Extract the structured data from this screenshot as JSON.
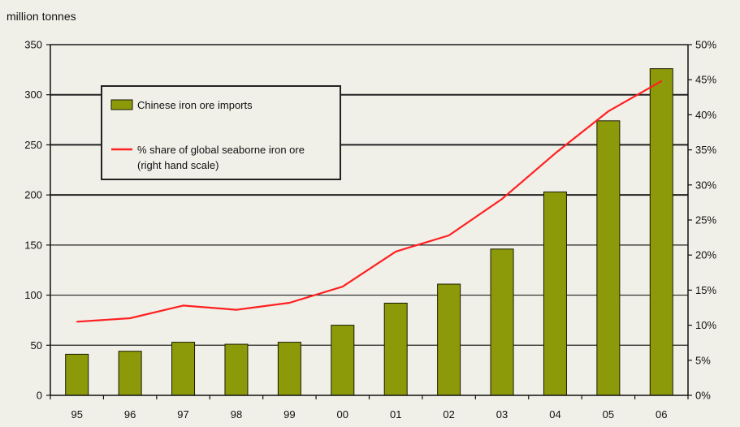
{
  "chart_data": {
    "type": "bar",
    "unit_label": "million tonnes",
    "categories": [
      "95",
      "96",
      "97",
      "98",
      "99",
      "00",
      "01",
      "02",
      "03",
      "04",
      "05",
      "06"
    ],
    "series": [
      {
        "name": "Chinese iron ore imports",
        "type": "bar",
        "axis": "left",
        "color": "#8c9a0a",
        "values": [
          41,
          44,
          53,
          51,
          53,
          70,
          92,
          111,
          146,
          203,
          274,
          326
        ]
      },
      {
        "name": "% share of global seaborne iron ore",
        "name_note": "(right hand scale)",
        "type": "line",
        "axis": "right",
        "color": "#ff2020",
        "values": [
          10.5,
          11.0,
          12.8,
          12.2,
          13.2,
          15.5,
          20.5,
          22.8,
          28.0,
          34.5,
          40.5,
          44.8
        ]
      }
    ],
    "y_left": {
      "min": 0,
      "max": 350,
      "ticks": [
        0,
        50,
        100,
        150,
        200,
        250,
        300,
        350
      ]
    },
    "y_right": {
      "min": 0,
      "max": 50,
      "ticks": [
        0,
        5,
        10,
        15,
        20,
        25,
        30,
        35,
        40,
        45,
        50
      ],
      "tick_labels": [
        "0%",
        "5%",
        "10%",
        "15%",
        "20%",
        "25%",
        "30%",
        "35%",
        "40%",
        "45%",
        "50%"
      ]
    },
    "grid": true,
    "legend_position": "top-left"
  }
}
